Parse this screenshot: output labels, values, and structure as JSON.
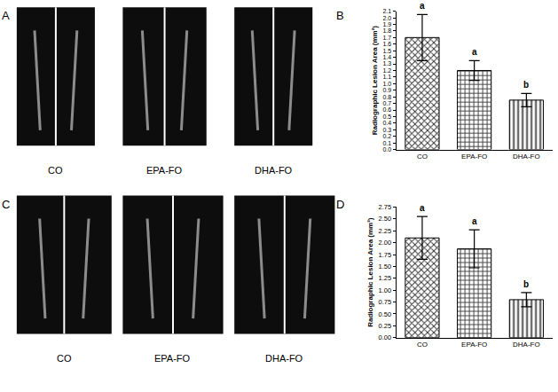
{
  "panels": [
    {
      "label": "A",
      "captions": [
        "CO",
        "EPA-FO",
        "DHA-FO"
      ]
    },
    {
      "label": "C",
      "captions": [
        "CO",
        "EPA-FO",
        "DHA-FO"
      ]
    }
  ],
  "chart_data": [
    {
      "type": "bar",
      "panel": "B",
      "y_label": "Radiographic Lesion Area (mm²)",
      "categories": [
        "CO",
        "EPA-FO",
        "DHA-FO"
      ],
      "values": [
        1.7,
        1.2,
        0.75
      ],
      "errors": [
        0.35,
        0.15,
        0.1
      ],
      "annotations": [
        "a",
        "a",
        "b"
      ],
      "colors": [
        "#333333",
        "#444444",
        "#333333"
      ],
      "ylim": [
        0,
        2.1
      ],
      "yticks": [
        {
          "value": 0,
          "label": "0.0"
        },
        0.1,
        0.2,
        0.3,
        0.4,
        0.5,
        0.6,
        0.7,
        0.8,
        0.9,
        {
          "value": 1,
          "label": "1.0"
        },
        1.1,
        1.2,
        1.3,
        1.4,
        1.5,
        1.6,
        1.7,
        1.8,
        1.9,
        {
          "value": 2,
          "label": "2.0"
        },
        2.1
      ],
      "grid": false
    },
    {
      "type": "bar",
      "panel": "D",
      "y_label": "Radiographic Lesion Area (mm²)",
      "categories": [
        "CO",
        "EPA-FO",
        "DHA-FO"
      ],
      "values": [
        2.1,
        1.87,
        0.8
      ],
      "errors": [
        0.45,
        0.4,
        0.15
      ],
      "annotations": [
        "a",
        "a",
        "b"
      ],
      "colors": [
        "#333333",
        "#444444",
        "#333333"
      ],
      "ylim": [
        0,
        2.75
      ],
      "yticks": [
        {
          "value": 0,
          "label": "0.00"
        },
        0.25,
        {
          "value": 0.5,
          "label": "0.50"
        },
        0.75,
        {
          "value": 1,
          "label": "1.00"
        },
        1.25,
        {
          "value": 1.5,
          "label": "1.50"
        },
        1.75,
        {
          "value": 2,
          "label": "2.00"
        },
        2.25,
        {
          "value": 2.5,
          "label": "2.50"
        },
        2.75
      ],
      "grid": false
    }
  ]
}
